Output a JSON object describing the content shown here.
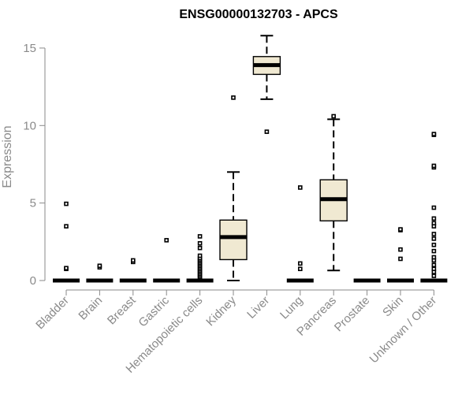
{
  "chart_data": {
    "type": "box",
    "title": "ENSG00000132703 - APCS",
    "ylabel": "Expression",
    "xlabel": "",
    "ylim": [
      0,
      16
    ],
    "yticks": [
      0,
      5,
      10,
      15
    ],
    "grid": false,
    "legend": "none",
    "box_fill": "#f0e9d2",
    "categories": [
      "Bladder",
      "Brain",
      "Breast",
      "Gastric",
      "Hematopoietic cells",
      "Kidney",
      "Liver",
      "Lung",
      "Pancreas",
      "Prostate",
      "Skin",
      "Unknown / Other"
    ],
    "boxes": [
      {
        "q1": 0,
        "median": 0,
        "q3": 0,
        "whisker_low": 0,
        "whisker_high": 0,
        "outliers": [
          0.75,
          0.8,
          3.5,
          4.95
        ]
      },
      {
        "q1": 0,
        "median": 0,
        "q3": 0,
        "whisker_low": 0,
        "whisker_high": 0,
        "outliers": [
          0.85,
          0.95
        ]
      },
      {
        "q1": 0,
        "median": 0,
        "q3": 0,
        "whisker_low": 0,
        "whisker_high": 0,
        "outliers": [
          1.2,
          1.3
        ]
      },
      {
        "q1": 0,
        "median": 0,
        "q3": 0,
        "whisker_low": 0,
        "whisker_high": 0,
        "outliers": [
          2.6
        ]
      },
      {
        "q1": 0,
        "median": 0,
        "q3": 0,
        "whisker_low": 0,
        "whisker_high": 0,
        "outliers": [
          0.15,
          0.25,
          0.35,
          0.45,
          0.55,
          0.65,
          0.75,
          0.85,
          0.95,
          1.05,
          1.15,
          1.25,
          1.35,
          1.45,
          1.6,
          2.1,
          2.4,
          2.85
        ]
      },
      {
        "q1": 1.35,
        "median": 2.8,
        "q3": 3.9,
        "whisker_low": 0,
        "whisker_high": 7.0,
        "outliers": [
          11.8
        ]
      },
      {
        "q1": 13.3,
        "median": 13.9,
        "q3": 14.45,
        "whisker_low": 11.7,
        "whisker_high": 15.8,
        "outliers": [
          9.6
        ]
      },
      {
        "q1": 0,
        "median": 0,
        "q3": 0,
        "whisker_low": 0,
        "whisker_high": 0,
        "outliers": [
          0.75,
          1.1,
          6.0
        ]
      },
      {
        "q1": 3.85,
        "median": 5.25,
        "q3": 6.5,
        "whisker_low": 0.65,
        "whisker_high": 10.4,
        "outliers": [
          10.6
        ]
      },
      {
        "q1": 0,
        "median": 0,
        "q3": 0,
        "whisker_low": 0,
        "whisker_high": 0,
        "outliers": []
      },
      {
        "q1": 0,
        "median": 0,
        "q3": 0,
        "whisker_low": 0,
        "whisker_high": 0,
        "outliers": [
          1.4,
          2.0,
          3.25,
          3.3
        ]
      },
      {
        "q1": 0,
        "median": 0,
        "q3": 0,
        "whisker_low": 0,
        "whisker_high": 0,
        "outliers": [
          0.3,
          0.55,
          0.75,
          1.0,
          1.3,
          1.5,
          1.9,
          2.3,
          2.7,
          3.0,
          3.5,
          3.7,
          4.0,
          4.7,
          7.3,
          7.4,
          9.4,
          9.45
        ]
      }
    ]
  }
}
